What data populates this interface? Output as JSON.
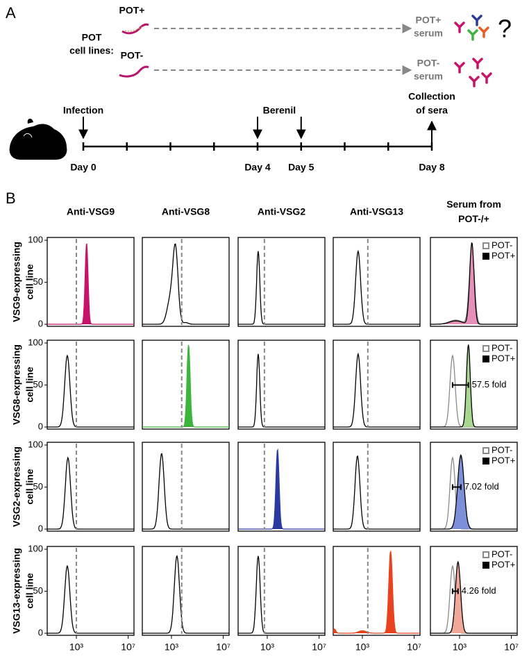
{
  "panel_a": {
    "label": "A",
    "pot_plus": "POT+",
    "pot_minus": "POT-",
    "pot_lines": [
      "POT",
      "cell lines:"
    ],
    "serum_plus": [
      "POT+",
      "serum"
    ],
    "serum_minus": [
      "POT-",
      "serum"
    ],
    "question": "?",
    "timeline": {
      "lim": [
        0,
        8
      ],
      "ticks": [
        0,
        1,
        2,
        3,
        4,
        5,
        6,
        7,
        8
      ],
      "day_labels": [
        {
          "day": 0,
          "label": "Day 0"
        },
        {
          "day": 4,
          "label": "Day 4"
        },
        {
          "day": 5,
          "label": "Day 5"
        },
        {
          "day": 8,
          "label": "Day 8"
        }
      ],
      "events": [
        {
          "lines": [
            "Infection"
          ],
          "days": [
            0
          ],
          "direction": "down"
        },
        {
          "lines": [
            "Berenil"
          ],
          "days": [
            4,
            5
          ],
          "direction": "down"
        },
        {
          "lines": [
            "Collection",
            "of sera"
          ],
          "days": [
            8
          ],
          "direction": "up"
        }
      ]
    }
  },
  "panel_b": {
    "label": "B",
    "xlim": [
      0.75,
      7.45
    ],
    "xticks": [
      {
        "value": 3,
        "label": "10³"
      },
      {
        "value": 7,
        "label": "10⁷"
      }
    ],
    "ylim": [
      0,
      100
    ],
    "yticks": [
      0,
      50,
      100
    ],
    "legend": [
      {
        "name": "POT-",
        "color": "#8a8a8a"
      },
      {
        "name": "POT+",
        "color": "#000000"
      }
    ],
    "columns": [
      {
        "title": [
          "Anti-VSG9"
        ],
        "gate": 3.0
      },
      {
        "title": [
          "Anti-VSG8"
        ],
        "gate": 3.79
      },
      {
        "title": [
          "Anti-VSG2"
        ],
        "gate": 2.78
      },
      {
        "title": [
          "Anti-VSG13"
        ],
        "gate": 3.42
      },
      {
        "title": [
          "Serum from",
          "POT-/+"
        ],
        "legend": true
      }
    ],
    "rows": [
      {
        "label": [
          "VSG9-expressing",
          "cell line"
        ],
        "panels": [
          {
            "curves": [
              {
                "peaks": [
                  [
                    3.79,
                    97,
                    0.11
                  ]
                ],
                "fill": "#c8136a",
                "stroke": "#c8136a"
              }
            ]
          },
          {
            "curves": [
              {
                "peaks": [
                  [
                    3.31,
                    88,
                    0.2
                  ],
                  [
                    2.9,
                    28,
                    0.25
                  ],
                  [
                    4.1,
                    2,
                    0.2
                  ]
                ],
                "stroke": "#000000"
              }
            ]
          },
          {
            "curves": [
              {
                "peaks": [
                  [
                    2.3,
                    87,
                    0.12
                  ]
                ],
                "stroke": "#000000"
              }
            ]
          },
          {
            "curves": [
              {
                "peaks": [
                  [
                    2.67,
                    87,
                    0.19
                  ]
                ],
                "stroke": "#000000"
              }
            ]
          },
          {
            "curves": [
              {
                "peaks": [
                  [
                    3.95,
                    88,
                    0.2
                  ],
                  [
                    2.7,
                    5,
                    0.5
                  ]
                ],
                "stroke": "#8a8a8a"
              },
              {
                "peaks": [
                  [
                    3.95,
                    97,
                    0.17
                  ],
                  [
                    2.7,
                    4,
                    0.5
                  ]
                ],
                "fill": "#e68fb8",
                "stroke": "#000000"
              }
            ]
          }
        ]
      },
      {
        "label": [
          "VSG8-expressing",
          "cell line"
        ],
        "panels": [
          {
            "curves": [
              {
                "peaks": [
                  [
                    2.3,
                    85,
                    0.2
                  ]
                ],
                "stroke": "#000000"
              }
            ]
          },
          {
            "curves": [
              {
                "peaks": [
                  [
                    4.32,
                    98,
                    0.12
                  ]
                ],
                "fill": "#3db53d",
                "stroke": "#3db53d"
              }
            ]
          },
          {
            "curves": [
              {
                "peaks": [
                  [
                    2.3,
                    87,
                    0.12
                  ]
                ],
                "stroke": "#000000"
              }
            ]
          },
          {
            "curves": [
              {
                "peaks": [
                  [
                    2.67,
                    87,
                    0.19
                  ]
                ],
                "stroke": "#000000"
              }
            ]
          },
          {
            "curves": [
              {
                "peaks": [
                  [
                    2.46,
                    85,
                    0.2
                  ]
                ],
                "stroke": "#8a8a8a"
              },
              {
                "peaks": [
                  [
                    3.68,
                    98,
                    0.15
                  ]
                ],
                "fill": "#a8d890",
                "stroke": "#000000"
              }
            ],
            "annotation": "57.5 fold"
          }
        ]
      },
      {
        "label": [
          "VSG2-expressing",
          "cell line"
        ],
        "panels": [
          {
            "curves": [
              {
                "peaks": [
                  [
                    2.35,
                    85,
                    0.2
                  ]
                ],
                "stroke": "#000000"
              }
            ]
          },
          {
            "curves": [
              {
                "peaks": [
                  [
                    2.24,
                    90,
                    0.2
                  ]
                ],
                "stroke": "#000000"
              }
            ]
          },
          {
            "curves": [
              {
                "peaks": [
                  [
                    3.79,
                    95,
                    0.12
                  ]
                ],
                "fill": "#2b3aa0",
                "stroke": "#2b3aa0"
              }
            ]
          },
          {
            "curves": [
              {
                "peaks": [
                  [
                    2.62,
                    87,
                    0.19
                  ]
                ],
                "stroke": "#000000"
              }
            ]
          },
          {
            "curves": [
              {
                "peaks": [
                  [
                    2.46,
                    85,
                    0.2
                  ]
                ],
                "stroke": "#8a8a8a"
              },
              {
                "peaks": [
                  [
                    3.1,
                    88,
                    0.25
                  ]
                ],
                "fill": "#7d8fd8",
                "stroke": "#000000"
              }
            ],
            "annotation": "7.02 fold"
          }
        ]
      },
      {
        "label": [
          "VSG13-expressing",
          "cell line"
        ],
        "panels": [
          {
            "curves": [
              {
                "peaks": [
                  [
                    2.3,
                    80,
                    0.2
                  ]
                ],
                "stroke": "#000000"
              }
            ]
          },
          {
            "curves": [
              {
                "peaks": [
                  [
                    3.42,
                    92,
                    0.2
                  ]
                ],
                "stroke": "#000000"
              }
            ]
          },
          {
            "curves": [
              {
                "peaks": [
                  [
                    2.3,
                    92,
                    0.15
                  ]
                ],
                "stroke": "#000000"
              }
            ]
          },
          {
            "curves": [
              {
                "peaks": [
                  [
                    5.18,
                    98,
                    0.14
                  ],
                  [
                    3.0,
                    3,
                    0.3
                  ],
                  [
                    0.85,
                    5,
                    0.1
                  ]
                ],
                "fill": "#e8421e",
                "stroke": "#e8421e"
              }
            ]
          },
          {
            "curves": [
              {
                "peaks": [
                  [
                    2.46,
                    80,
                    0.2
                  ]
                ],
                "stroke": "#8a8a8a"
              },
              {
                "peaks": [
                  [
                    2.88,
                    85,
                    0.2
                  ]
                ],
                "fill": "#f2a898",
                "stroke": "#000000"
              }
            ],
            "annotation": "4.26 fold"
          }
        ]
      }
    ]
  }
}
